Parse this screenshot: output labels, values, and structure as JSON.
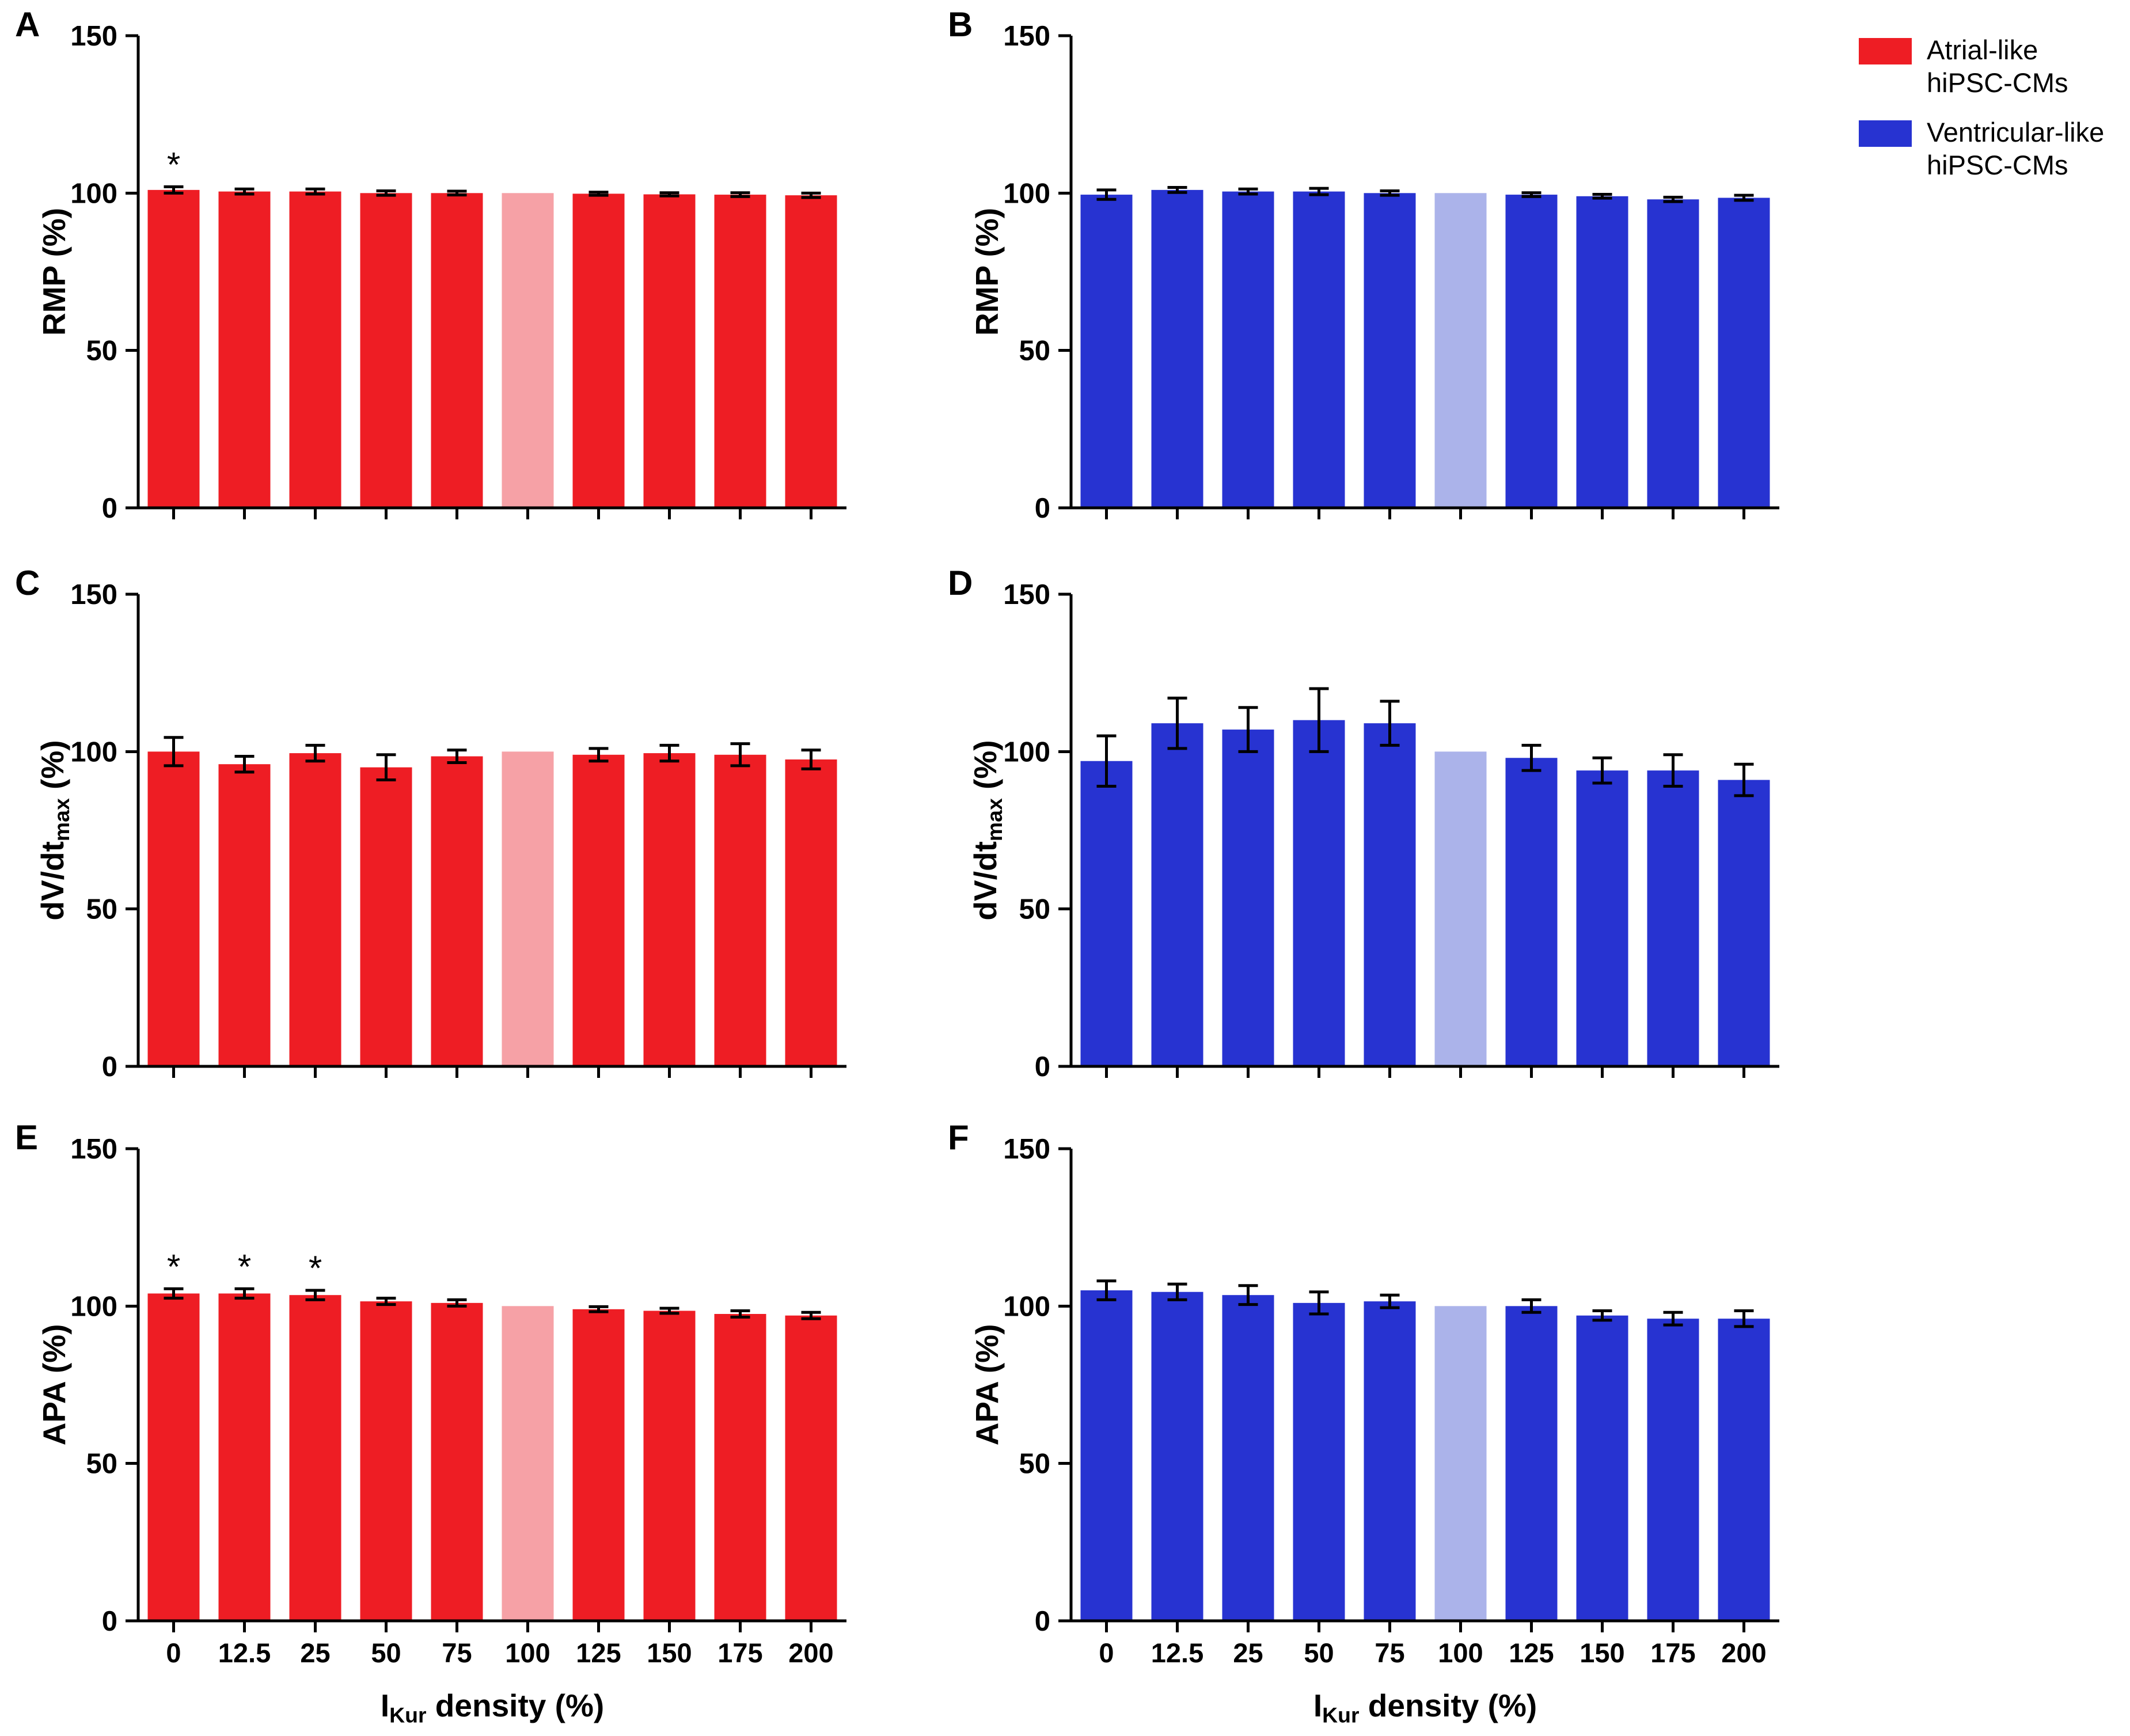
{
  "figure": {
    "background": "#ffffff",
    "axis_color": "#000000",
    "xlabel": {
      "pre": "I",
      "sub": "Kur",
      "post": " density (%)"
    }
  },
  "legend": {
    "items": [
      {
        "label_line1": "Atrial-like",
        "label_line2": "hiPSC-CMs",
        "color": "#EE1D24"
      },
      {
        "label_line1": "Ventricular-like",
        "label_line2": "hiPSC-CMs",
        "color": "#2733D1"
      }
    ]
  },
  "chart_data": [
    {
      "panel": "A",
      "type": "bar",
      "ylabel": {
        "pre": "RMP (%)",
        "sub": "",
        "post": ""
      },
      "categories": [
        "0",
        "12.5",
        "25",
        "50",
        "75",
        "100",
        "125",
        "150",
        "175",
        "200"
      ],
      "values": [
        101,
        100.5,
        100.5,
        100,
        100,
        100,
        99.8,
        99.6,
        99.5,
        99.3
      ],
      "errors": [
        1.0,
        0.8,
        0.8,
        0.7,
        0.6,
        0,
        0.5,
        0.5,
        0.6,
        0.7
      ],
      "significant_indices": [
        0
      ],
      "bar_color": "#EE1D24",
      "control_index": 5,
      "control_color": "#F6A1A6",
      "ylim": [
        0,
        150
      ],
      "yticks": [
        0,
        50,
        100,
        150
      ],
      "show_x_tick_labels": false,
      "show_x_title": false
    },
    {
      "panel": "B",
      "type": "bar",
      "ylabel": {
        "pre": "RMP (%)",
        "sub": "",
        "post": ""
      },
      "categories": [
        "0",
        "12.5",
        "25",
        "50",
        "75",
        "100",
        "125",
        "150",
        "175",
        "200"
      ],
      "values": [
        99.5,
        101,
        100.5,
        100.5,
        100,
        100,
        99.5,
        99,
        98,
        98.5
      ],
      "errors": [
        1.5,
        0.8,
        0.8,
        1.0,
        0.7,
        0,
        0.6,
        0.6,
        0.7,
        0.8
      ],
      "significant_indices": [],
      "bar_color": "#2733D1",
      "control_index": 5,
      "control_color": "#ABB3EA",
      "ylim": [
        0,
        150
      ],
      "yticks": [
        0,
        50,
        100,
        150
      ],
      "show_x_tick_labels": false,
      "show_x_title": false
    },
    {
      "panel": "C",
      "type": "bar",
      "ylabel": {
        "pre": "dV/dt",
        "sub": "max",
        "post": " (%)"
      },
      "categories": [
        "0",
        "12.5",
        "25",
        "50",
        "75",
        "100",
        "125",
        "150",
        "175",
        "200"
      ],
      "values": [
        100,
        96,
        99.5,
        95,
        98.5,
        100,
        99,
        99.5,
        99,
        97.5
      ],
      "errors": [
        4.5,
        2.5,
        2.5,
        4.0,
        2.0,
        0,
        2.0,
        2.5,
        3.5,
        3.0
      ],
      "significant_indices": [],
      "bar_color": "#EE1D24",
      "control_index": 5,
      "control_color": "#F6A1A6",
      "ylim": [
        0,
        150
      ],
      "yticks": [
        0,
        50,
        100,
        150
      ],
      "show_x_tick_labels": false,
      "show_x_title": false
    },
    {
      "panel": "D",
      "type": "bar",
      "ylabel": {
        "pre": "dV/dt",
        "sub": "max",
        "post": " (%)"
      },
      "categories": [
        "0",
        "12.5",
        "25",
        "50",
        "75",
        "100",
        "125",
        "150",
        "175",
        "200"
      ],
      "values": [
        97,
        109,
        107,
        110,
        109,
        100,
        98,
        94,
        94,
        91
      ],
      "errors": [
        8,
        8,
        7,
        10,
        7,
        0,
        4,
        4,
        5,
        5
      ],
      "significant_indices": [],
      "bar_color": "#2733D1",
      "control_index": 5,
      "control_color": "#ABB3EA",
      "ylim": [
        0,
        150
      ],
      "yticks": [
        0,
        50,
        100,
        150
      ],
      "show_x_tick_labels": false,
      "show_x_title": false
    },
    {
      "panel": "E",
      "type": "bar",
      "ylabel": {
        "pre": "APA (%)",
        "sub": "",
        "post": ""
      },
      "categories": [
        "0",
        "12.5",
        "25",
        "50",
        "75",
        "100",
        "125",
        "150",
        "175",
        "200"
      ],
      "values": [
        104,
        104,
        103.5,
        101.5,
        101,
        100,
        99,
        98.5,
        97.5,
        97
      ],
      "errors": [
        1.5,
        1.5,
        1.5,
        1.0,
        1.0,
        0,
        0.8,
        0.8,
        1.0,
        1.0
      ],
      "significant_indices": [
        0,
        1,
        2
      ],
      "bar_color": "#EE1D24",
      "control_index": 5,
      "control_color": "#F6A1A6",
      "ylim": [
        0,
        150
      ],
      "yticks": [
        0,
        50,
        100,
        150
      ],
      "show_x_tick_labels": true,
      "show_x_title": true
    },
    {
      "panel": "F",
      "type": "bar",
      "ylabel": {
        "pre": "APA (%)",
        "sub": "",
        "post": ""
      },
      "categories": [
        "0",
        "12.5",
        "25",
        "50",
        "75",
        "100",
        "125",
        "150",
        "175",
        "200"
      ],
      "values": [
        105,
        104.5,
        103.5,
        101,
        101.5,
        100,
        100,
        97,
        96,
        96
      ],
      "errors": [
        3.0,
        2.5,
        3.0,
        3.5,
        2.0,
        0,
        2.0,
        1.5,
        2.0,
        2.5
      ],
      "significant_indices": [],
      "bar_color": "#2733D1",
      "control_index": 5,
      "control_color": "#ABB3EA",
      "ylim": [
        0,
        150
      ],
      "yticks": [
        0,
        50,
        100,
        150
      ],
      "show_x_tick_labels": true,
      "show_x_title": true
    }
  ]
}
